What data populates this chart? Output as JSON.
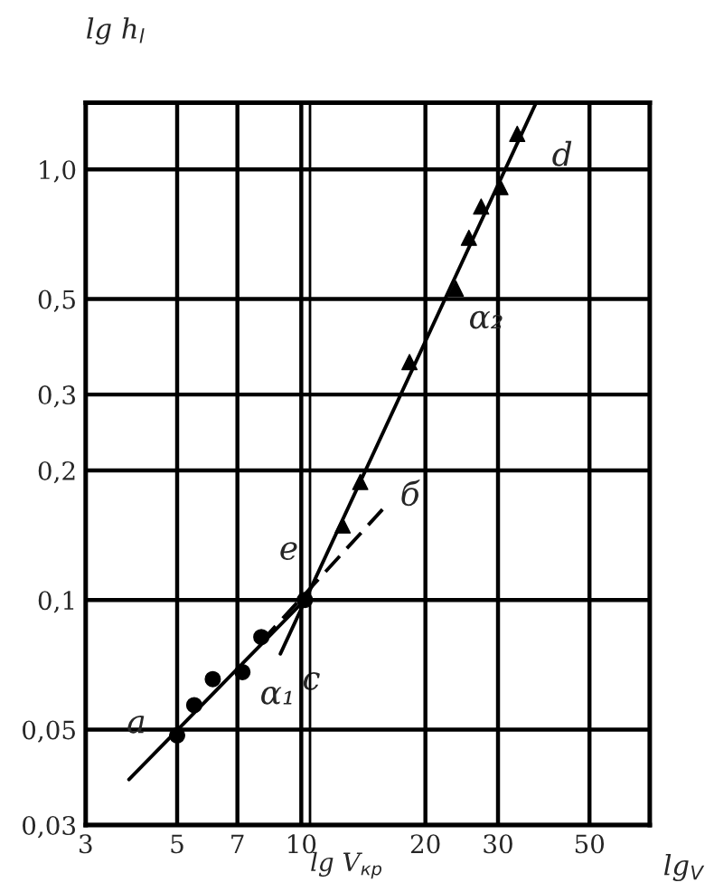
{
  "chart_data": {
    "type": "line",
    "xlabel": "lg$_{V}$",
    "ylabel": "lg h$_{l}$",
    "log": "xy",
    "grid": true,
    "xlim": [
      3,
      70
    ],
    "ylim": [
      0.03,
      1.43
    ],
    "xticks": [
      3,
      5,
      7,
      10,
      20,
      30,
      50
    ],
    "yticks": [
      {
        "value": 0.03,
        "label": "0,03"
      },
      {
        "value": 0.05,
        "label": "0,05"
      },
      {
        "value": 0.1,
        "label": "0,1"
      },
      {
        "value": 0.2,
        "label": "0,2"
      },
      {
        "value": 0.3,
        "label": "0,3"
      },
      {
        "value": 0.5,
        "label": "0,5"
      },
      {
        "value": 1.0,
        "label": "1,0"
      }
    ],
    "series": [
      {
        "type": "scatter",
        "marker": "circle",
        "color": "#000000",
        "x": [
          5.0,
          5.5,
          6.1,
          7.2,
          8.0,
          10.2
        ],
        "values": [
          0.0485,
          0.057,
          0.0655,
          0.068,
          0.082,
          0.1
        ]
      },
      {
        "type": "scatter",
        "marker": "triangle",
        "color": "#000000",
        "x": [
          12.6,
          13.9,
          18.3,
          23.7,
          25.5,
          27.3,
          30.4,
          33.4
        ],
        "values": [
          0.149,
          0.188,
          0.357,
          0.529,
          0.694,
          0.82,
          0.91,
          1.21
        ]
      },
      {
        "line_style": "solid",
        "color": "#000000",
        "x": [
          3.82,
          10.2
        ],
        "values": [
          0.0383,
          0.1
        ]
      },
      {
        "line_style": "dashed",
        "color": "#000000",
        "x": [
          8.0,
          15.9
        ],
        "values": [
          0.08,
          0.164
        ]
      },
      {
        "line_style": "solid",
        "color": "#000000",
        "x": [
          8.9,
          37.0
        ],
        "values": [
          0.075,
          1.42
        ]
      }
    ],
    "ref_lines": [
      {
        "axis": "x",
        "value": 10.5,
        "label": "lg V$_{кр}$",
        "color": "#000000"
      }
    ],
    "annotations": [
      "a",
      "б",
      "d",
      "e",
      "c",
      "α₁",
      "α₂"
    ]
  }
}
